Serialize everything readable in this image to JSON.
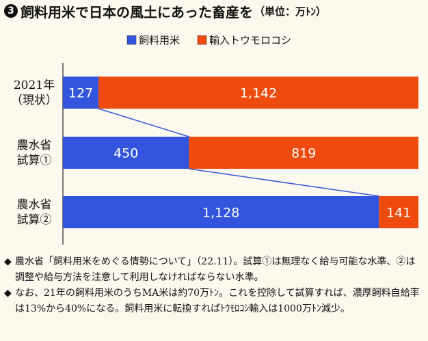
{
  "title": {
    "number": "3",
    "main": "飼料用米で日本の風土にあった畜産を",
    "unit": "（単位：万ﾄﾝ）"
  },
  "chart_data": {
    "type": "bar",
    "orientation": "horizontal",
    "stacked": true,
    "title": "飼料用米で日本の風土にあった畜産を",
    "unit": "万ﾄﾝ",
    "categories": [
      [
        "2021年",
        "（現状）"
      ],
      [
        "農水省",
        "試算①"
      ],
      [
        "農水省",
        "試算②"
      ]
    ],
    "series": [
      {
        "name": "飼料用米",
        "color": "#3355dd",
        "values": [
          127,
          450,
          1128
        ],
        "labels": [
          "127",
          "450",
          "1,128"
        ]
      },
      {
        "name": "輸入トウモロコシ",
        "color": "#f04b0f",
        "values": [
          1142,
          819,
          141
        ],
        "labels": [
          "1,142",
          "819",
          "141"
        ]
      }
    ],
    "legend_position": "top-center",
    "grid": false,
    "xlim": [
      0,
      1269
    ],
    "connector_lines": true
  },
  "notes": [
    {
      "mark": "◆",
      "text": "農水省「飼料用米をめぐる情勢について」（22.11）。試算①は無理なく給与可能な水準、②は調整や給与方法を注意して利用しなければならない水準。"
    },
    {
      "mark": "◆",
      "text": "なお、21年の飼料用米のうちMA米は約70万ﾄﾝ。これを控除して試算すれば、濃厚飼料自給率は13%から40%になる。飼料用米に転換すればﾄｳﾓﾛｺｼ輸入は1000万ﾄﾝ減少。"
    }
  ]
}
